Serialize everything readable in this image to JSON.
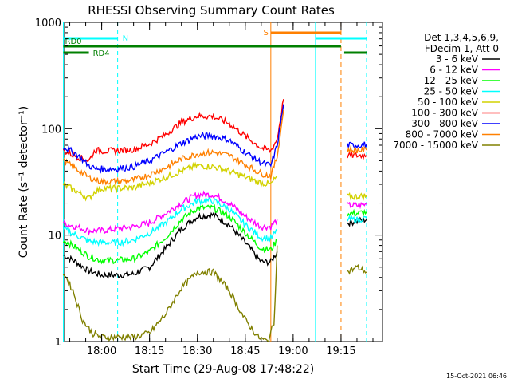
{
  "chart_data": {
    "type": "line",
    "title": "RHESSI Observing Summary Count Rates",
    "xlabel": "Start Time (29-Aug-08 17:48:22)",
    "ylabel": "Count Rate (s⁻¹ detector⁻¹)",
    "y_scale": "log",
    "ylim": [
      1,
      1000
    ],
    "xlim": [
      "17:48:22",
      "19:28:00"
    ],
    "y_ticks": [
      "1",
      "10",
      "100",
      "1000"
    ],
    "x_ticks": [
      "18:00",
      "18:15",
      "18:30",
      "18:45",
      "19:00",
      "19:15"
    ],
    "legend_header": [
      "Det 1,3,4,5,6,9,",
      "FDecim 1, Att 0"
    ],
    "legend_position": "right",
    "timestamp": "15-Oct-2021 06:46",
    "series": [
      {
        "name": "3 - 6 keV",
        "color": "#000000",
        "x": [
          "17:48",
          "17:52",
          "17:56",
          "18:00",
          "18:05",
          "18:10",
          "18:15",
          "18:20",
          "18:25",
          "18:30",
          "18:35",
          "18:40",
          "18:45",
          "18:50",
          "18:53",
          "18:55",
          "19:17",
          "19:20",
          "19:23"
        ],
        "values": [
          6.5,
          5.6,
          4.6,
          4.2,
          4.2,
          4.3,
          5,
          7.5,
          11.5,
          15,
          15.5,
          12.5,
          8.5,
          5.6,
          5.6,
          7,
          13,
          13.5,
          14
        ]
      },
      {
        "name": "6 - 12 keV",
        "color": "#ff00ff",
        "x": [
          "17:48",
          "17:52",
          "17:56",
          "18:00",
          "18:05",
          "18:10",
          "18:15",
          "18:20",
          "18:25",
          "18:30",
          "18:35",
          "18:40",
          "18:45",
          "18:50",
          "18:53",
          "18:55",
          "19:17",
          "19:20",
          "19:23"
        ],
        "values": [
          13,
          12,
          11,
          11,
          11.5,
          12,
          13,
          16,
          20,
          24,
          24,
          20,
          15,
          12,
          12,
          14,
          19,
          19,
          19.5
        ]
      },
      {
        "name": "12 - 25 keV",
        "color": "#00ff00",
        "x": [
          "17:48",
          "17:52",
          "17:56",
          "18:00",
          "18:05",
          "18:10",
          "18:15",
          "18:20",
          "18:25",
          "18:30",
          "18:35",
          "18:40",
          "18:45",
          "18:50",
          "18:53",
          "18:55",
          "19:17",
          "19:20",
          "19:23"
        ],
        "values": [
          9,
          7.6,
          6.3,
          5.8,
          5.8,
          6,
          7,
          9.5,
          14,
          18,
          18,
          15,
          10.5,
          7.5,
          7.3,
          9,
          16,
          16,
          16.5
        ]
      },
      {
        "name": "25 - 50 keV",
        "color": "#00ffff",
        "x": [
          "17:48",
          "17:52",
          "17:56",
          "18:00",
          "18:05",
          "18:10",
          "18:15",
          "18:20",
          "18:25",
          "18:30",
          "18:35",
          "18:40",
          "18:45",
          "18:50",
          "18:53",
          "18:55",
          "19:17",
          "19:20",
          "19:23"
        ],
        "values": [
          11.5,
          10,
          8.8,
          8.5,
          8.5,
          9,
          10.5,
          13,
          17.5,
          21,
          21,
          17.5,
          12.5,
          9.5,
          9.3,
          11,
          14,
          14,
          14.5
        ]
      },
      {
        "name": "50 - 100 keV",
        "color": "#d2d200",
        "x": [
          "17:48",
          "17:52",
          "17:56",
          "17:58",
          "18:00",
          "18:05",
          "18:10",
          "18:15",
          "18:20",
          "18:25",
          "18:30",
          "18:35",
          "18:40",
          "18:45",
          "18:50",
          "18:53",
          "18:55",
          "19:17",
          "19:20",
          "19:23"
        ],
        "values": [
          30,
          26,
          22,
          26,
          27.5,
          27.5,
          28,
          31,
          35,
          40,
          45,
          44,
          40,
          35,
          31,
          30,
          36,
          23,
          23,
          23.5
        ]
      },
      {
        "name": "100 - 300 keV",
        "color": "#ff0000",
        "x": [
          "17:48",
          "17:52",
          "17:56",
          "17:58",
          "18:00",
          "18:05",
          "18:10",
          "18:15",
          "18:20",
          "18:25",
          "18:30",
          "18:35",
          "18:40",
          "18:45",
          "18:50",
          "18:53",
          "18:55",
          "18:57",
          "19:17",
          "19:20",
          "19:23"
        ],
        "values": [
          62,
          55,
          50,
          63,
          62,
          62,
          64,
          72,
          88,
          115,
          132,
          130,
          112,
          85,
          66,
          62,
          80,
          190,
          56,
          56,
          56
        ]
      },
      {
        "name": "300 - 800 keV",
        "color": "#0000ff",
        "x": [
          "17:48",
          "17:52",
          "17:56",
          "17:58",
          "18:00",
          "18:05",
          "18:10",
          "18:15",
          "18:20",
          "18:25",
          "18:30",
          "18:35",
          "18:40",
          "18:45",
          "18:50",
          "18:53",
          "18:55",
          "18:57",
          "19:17",
          "19:20",
          "19:23"
        ],
        "values": [
          68,
          58,
          45,
          42,
          42,
          42,
          44,
          50,
          60,
          73,
          85,
          86,
          78,
          60,
          48,
          45,
          70,
          170,
          70,
          70,
          71
        ]
      },
      {
        "name": "800 - 7000 keV",
        "color": "#ff8000",
        "x": [
          "17:48",
          "17:52",
          "17:56",
          "17:58",
          "18:00",
          "18:05",
          "18:10",
          "18:15",
          "18:20",
          "18:25",
          "18:30",
          "18:35",
          "18:40",
          "18:45",
          "18:50",
          "18:53",
          "18:55",
          "18:57",
          "19:17",
          "19:20",
          "19:23"
        ],
        "values": [
          50,
          42,
          35,
          33,
          32,
          32,
          33,
          37,
          43,
          52,
          58,
          60,
          56,
          46,
          38,
          36,
          55,
          150,
          63,
          63,
          63
        ]
      },
      {
        "name": "7000 - 15000 keV",
        "color": "#808000",
        "x": [
          "17:48",
          "17:51",
          "17:54",
          "17:57",
          "18:00",
          "18:05",
          "18:10",
          "18:15",
          "18:20",
          "18:25",
          "18:30",
          "18:35",
          "18:40",
          "18:45",
          "18:49",
          "18:52",
          "18:54",
          "18:55",
          "19:17",
          "19:20",
          "19:23"
        ],
        "values": [
          4.5,
          3,
          1.6,
          1.2,
          1.1,
          1.1,
          1.1,
          1.2,
          1.8,
          3.2,
          4.5,
          4.5,
          3,
          1.6,
          1.1,
          1,
          1.5,
          8,
          4.5,
          5,
          4.5
        ]
      }
    ],
    "overlays": [
      {
        "label": "N",
        "color": "#00ffff",
        "segments": [
          [
            "17:48",
            "18:05"
          ],
          [
            "19:07",
            "19:23"
          ]
        ]
      },
      {
        "label": "S",
        "color": "#ff8000",
        "segments": [
          [
            "18:53",
            "19:15"
          ]
        ]
      },
      {
        "label": "RD0",
        "color": "#008000",
        "segments": [
          [
            "17:48",
            "19:15"
          ]
        ]
      },
      {
        "label": "RD4",
        "color": "#008000",
        "segments": [
          [
            "17:48",
            "17:56"
          ],
          [
            "19:16",
            "19:23"
          ]
        ]
      }
    ]
  }
}
